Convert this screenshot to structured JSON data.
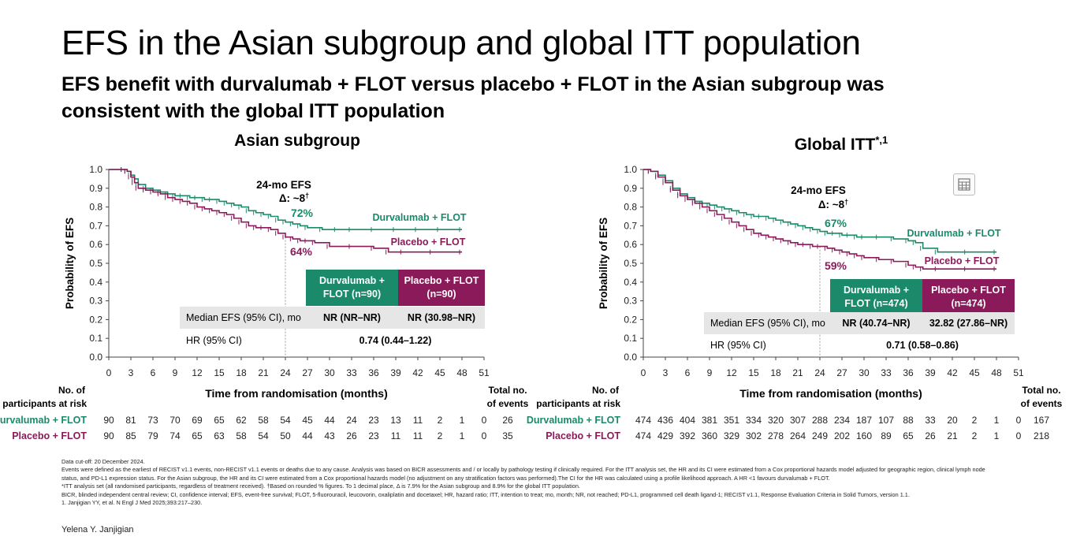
{
  "title": "EFS in the Asian subgroup and global ITT population",
  "subtitle": "EFS benefit with durvalumab + FLOT versus placebo + FLOT in the Asian subgroup was consistent with the global ITT population",
  "colors": {
    "durva": "#1a8a6a",
    "placebo": "#8b1a5a"
  },
  "chart_data": [
    {
      "type": "line",
      "title": "Asian subgroup",
      "title_sup": "",
      "ylabel": "Probability of EFS",
      "xlabel": "Time from randomisation (months)",
      "ylim": [
        0,
        1
      ],
      "xlim": [
        0,
        51
      ],
      "yticks": [
        "0.0",
        "0.1",
        "0.2",
        "0.3",
        "0.4",
        "0.5",
        "0.6",
        "0.7",
        "0.8",
        "0.9",
        "1.0"
      ],
      "xticks": [
        "0",
        "3",
        "6",
        "9",
        "12",
        "15",
        "18",
        "21",
        "24",
        "27",
        "30",
        "33",
        "36",
        "39",
        "42",
        "45",
        "48",
        "51"
      ],
      "series": [
        {
          "name": "Durvalumab + FLOT",
          "x": [
            0,
            2,
            2.5,
            3,
            3.5,
            4,
            5,
            6,
            7,
            8,
            9,
            10,
            11,
            12,
            13,
            14,
            15,
            16,
            17,
            18,
            19,
            20,
            21,
            22,
            23,
            24,
            25,
            26,
            27,
            29,
            31,
            33,
            36,
            39,
            42,
            45,
            48
          ],
          "y": [
            1.0,
            1.0,
            0.99,
            0.97,
            0.95,
            0.92,
            0.9,
            0.89,
            0.88,
            0.87,
            0.86,
            0.86,
            0.85,
            0.85,
            0.84,
            0.84,
            0.83,
            0.82,
            0.81,
            0.8,
            0.78,
            0.77,
            0.76,
            0.75,
            0.73,
            0.72,
            0.71,
            0.7,
            0.69,
            0.68,
            0.68,
            0.68,
            0.68,
            0.68,
            0.68,
            0.68,
            0.68
          ]
        },
        {
          "name": "Placebo + FLOT",
          "x": [
            0,
            2,
            2.5,
            3,
            3.5,
            4,
            5,
            6,
            7,
            8,
            9,
            10,
            11,
            12,
            13,
            14,
            15,
            16,
            17,
            18,
            19,
            20,
            21,
            22,
            23,
            24,
            25,
            26,
            27,
            28,
            30,
            33,
            36,
            38,
            40,
            44,
            48
          ],
          "y": [
            1.0,
            1.0,
            0.99,
            0.96,
            0.93,
            0.9,
            0.89,
            0.88,
            0.87,
            0.85,
            0.84,
            0.83,
            0.82,
            0.8,
            0.79,
            0.78,
            0.77,
            0.76,
            0.74,
            0.72,
            0.7,
            0.69,
            0.69,
            0.68,
            0.66,
            0.64,
            0.63,
            0.62,
            0.62,
            0.61,
            0.59,
            0.59,
            0.58,
            0.56,
            0.56,
            0.56,
            0.56
          ]
        }
      ],
      "annotations": {
        "efs_label": "24-mo EFS",
        "delta": "Δ: ~8",
        "delta_sup": "†",
        "durva_pct": "72%",
        "placebo_pct": "64%"
      },
      "legend": {
        "durva": "Durvalumab + FLOT",
        "placebo": "Placebo + FLOT"
      },
      "table": {
        "durva_header": "Durvalumab + FLOT (n=90)",
        "placebo_header": "Placebo + FLOT (n=90)",
        "median_label": "Median EFS (95% CI), mo",
        "median_durva": "NR (NR–NR)",
        "median_placebo": "NR (30.98–NR)",
        "hr_label": "HR (95% CI)",
        "hr_value": "0.74 (0.44–1.22)"
      },
      "at_risk_title": "No. of participants at risk",
      "events_title": "Total no. of events",
      "at_risk": {
        "durva": [
          "90",
          "81",
          "73",
          "70",
          "69",
          "65",
          "62",
          "58",
          "54",
          "45",
          "44",
          "24",
          "23",
          "13",
          "11",
          "2",
          "1",
          "0"
        ],
        "placebo": [
          "90",
          "85",
          "79",
          "74",
          "65",
          "63",
          "58",
          "54",
          "50",
          "44",
          "43",
          "26",
          "23",
          "11",
          "11",
          "2",
          "1",
          "0"
        ]
      },
      "events": {
        "durva": "26",
        "placebo": "35"
      }
    },
    {
      "type": "line",
      "title": "Global ITT",
      "title_sup": "*,1",
      "ylabel": "Probability of EFS",
      "xlabel": "Time from randomisation (months)",
      "ylim": [
        0,
        1
      ],
      "xlim": [
        0,
        51
      ],
      "yticks": [
        "0.0",
        "0.1",
        "0.2",
        "0.3",
        "0.4",
        "0.5",
        "0.6",
        "0.7",
        "0.8",
        "0.9",
        "1.0"
      ],
      "xticks": [
        "0",
        "3",
        "6",
        "9",
        "12",
        "15",
        "18",
        "21",
        "24",
        "27",
        "30",
        "33",
        "36",
        "39",
        "42",
        "45",
        "48",
        "51"
      ],
      "series": [
        {
          "name": "Durvalumab + FLOT",
          "x": [
            0,
            1,
            2,
            3,
            4,
            5,
            6,
            7,
            8,
            9,
            10,
            11,
            12,
            13,
            14,
            15,
            16,
            17,
            18,
            19,
            20,
            21,
            22,
            23,
            24,
            25,
            26,
            27,
            28,
            29,
            30,
            32,
            34,
            36,
            37,
            38,
            40,
            44,
            48
          ],
          "y": [
            1.0,
            0.99,
            0.97,
            0.94,
            0.9,
            0.87,
            0.85,
            0.83,
            0.82,
            0.81,
            0.8,
            0.79,
            0.78,
            0.77,
            0.76,
            0.75,
            0.75,
            0.74,
            0.73,
            0.72,
            0.71,
            0.7,
            0.69,
            0.68,
            0.67,
            0.66,
            0.66,
            0.65,
            0.65,
            0.64,
            0.64,
            0.64,
            0.63,
            0.62,
            0.61,
            0.58,
            0.56,
            0.56,
            0.56
          ]
        },
        {
          "name": "Placebo + FLOT",
          "x": [
            0,
            1,
            2,
            3,
            4,
            5,
            6,
            7,
            8,
            9,
            10,
            11,
            12,
            13,
            14,
            15,
            16,
            17,
            18,
            19,
            20,
            21,
            22,
            23,
            24,
            25,
            26,
            27,
            28,
            29,
            30,
            32,
            34,
            36,
            37,
            38,
            40,
            44,
            48
          ],
          "y": [
            1.0,
            0.99,
            0.96,
            0.93,
            0.89,
            0.86,
            0.84,
            0.82,
            0.8,
            0.78,
            0.76,
            0.74,
            0.72,
            0.7,
            0.68,
            0.66,
            0.65,
            0.64,
            0.63,
            0.62,
            0.61,
            0.6,
            0.6,
            0.59,
            0.59,
            0.58,
            0.57,
            0.56,
            0.55,
            0.54,
            0.53,
            0.52,
            0.51,
            0.49,
            0.48,
            0.47,
            0.47,
            0.47,
            0.47
          ]
        }
      ],
      "annotations": {
        "efs_label": "24-mo EFS",
        "delta": "Δ: ~8",
        "delta_sup": "†",
        "durva_pct": "67%",
        "placebo_pct": "59%"
      },
      "legend": {
        "durva": "Durvalumab + FLOT",
        "placebo": "Placebo + FLOT"
      },
      "table": {
        "durva_header": "Durvalumab + FLOT (n=474)",
        "placebo_header": "Placebo + FLOT (n=474)",
        "median_label": "Median EFS (95% CI), mo",
        "median_durva": "NR (40.74–NR)",
        "median_placebo": "32.82 (27.86–NR)",
        "hr_label": "HR (95% CI)",
        "hr_value": "0.71 (0.58–0.86)"
      },
      "at_risk_title": "No. of participants at risk",
      "events_title": "Total no. of events",
      "at_risk": {
        "durva": [
          "474",
          "436",
          "404",
          "381",
          "351",
          "334",
          "320",
          "307",
          "288",
          "234",
          "187",
          "107",
          "88",
          "33",
          "20",
          "2",
          "1",
          "0"
        ],
        "placebo": [
          "474",
          "429",
          "392",
          "360",
          "329",
          "302",
          "278",
          "264",
          "249",
          "202",
          "160",
          "89",
          "65",
          "26",
          "21",
          "2",
          "1",
          "0"
        ]
      },
      "events": {
        "durva": "167",
        "placebo": "218"
      }
    }
  ],
  "footnotes": [
    "Data cut-off: 20 December 2024.",
    "Events were defined as the earliest of RECIST v1.1 events, non-RECIST v1.1 events or deaths due to any cause. Analysis was based on BICR assessments and / or locally by pathology testing if clinically required. For the ITT analysis set, the HR and its CI were estimated from a Cox proportional hazards model adjusted for geographic region, clinical lymph node",
    "status, and PD-L1 expression status. For the Asian subgroup, the HR and its CI were estimated from a Cox proportional hazards model (no adjustment on any stratification factors was performed).The CI for the HR was calculated using a profile likelihood approach. A HR <1 favours durvalumab + FLOT.",
    "*ITT analysis set (all randomised participants, regardless of treatment received). †Based on rounded % figures. To 1 decimal place, Δ is 7.9% for the Asian subgroup and 8.9% for the global ITT population.",
    "BICR, blinded independent central review; CI, confidence interval; EFS, event-free survival; FLOT, 5-fluorouracil, leucovorin, oxaliplatin and docetaxel; HR, hazard ratio; ITT, intention to treat; mo, month; NR, not reached; PD-L1, programmed cell death ligand-1; RECIST v1.1, Response Evaluation Criteria in Solid Tumors, version 1.1.",
    "1. Janjigian YY, et al. N Engl J Med 2025;393:217–230."
  ],
  "presenter": "Yelena Y. Janjigian",
  "icons": {
    "table_icon": "table-grid-icon"
  }
}
